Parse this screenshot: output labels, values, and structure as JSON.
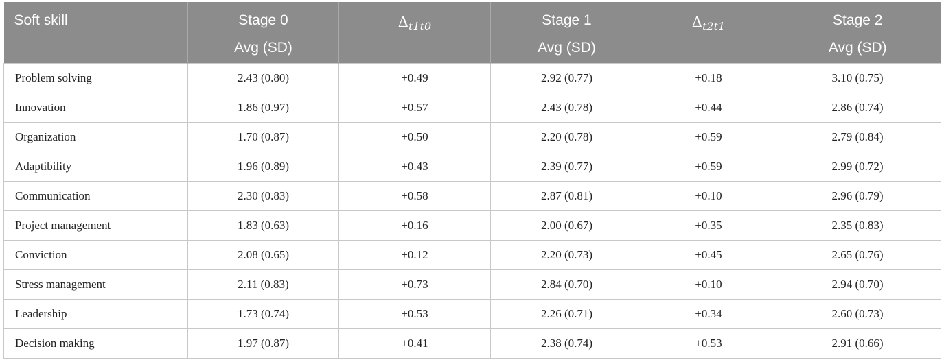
{
  "header": {
    "col0": "Soft skill",
    "col1_line1": "Stage 0",
    "col1_line2": "Avg (SD)",
    "col2_symbol": "Δ",
    "col2_sub": "t1t0",
    "col3_line1": "Stage 1",
    "col3_line2": "Avg (SD)",
    "col4_symbol": "Δ",
    "col4_sub": "t2t1",
    "col5_line1": "Stage 2",
    "col5_line2": "Avg (SD)"
  },
  "rows": [
    {
      "skill": "Problem solving",
      "stage0": "2.43 (0.80)",
      "d10": "+0.49",
      "stage1": "2.92 (0.77)",
      "d21": "+0.18",
      "stage2": "3.10 (0.75)"
    },
    {
      "skill": "Innovation",
      "stage0": "1.86 (0.97)",
      "d10": "+0.57",
      "stage1": "2.43 (0.78)",
      "d21": "+0.44",
      "stage2": "2.86 (0.74)"
    },
    {
      "skill": "Organization",
      "stage0": "1.70 (0.87)",
      "d10": "+0.50",
      "stage1": "2.20 (0.78)",
      "d21": "+0.59",
      "stage2": "2.79 (0.84)"
    },
    {
      "skill": "Adaptibility",
      "stage0": "1.96 (0.89)",
      "d10": "+0.43",
      "stage1": "2.39 (0.77)",
      "d21": "+0.59",
      "stage2": "2.99 (0.72)"
    },
    {
      "skill": "Communication",
      "stage0": "2.30 (0.83)",
      "d10": "+0.58",
      "stage1": "2.87 (0.81)",
      "d21": "+0.10",
      "stage2": "2.96 (0.79)"
    },
    {
      "skill": "Project management",
      "stage0": "1.83 (0.63)",
      "d10": "+0.16",
      "stage1": "2.00 (0.67)",
      "d21": "+0.35",
      "stage2": "2.35 (0.83)"
    },
    {
      "skill": "Conviction",
      "stage0": "2.08 (0.65)",
      "d10": "+0.12",
      "stage1": "2.20 (0.73)",
      "d21": "+0.45",
      "stage2": "2.65 (0.76)"
    },
    {
      "skill": "Stress management",
      "stage0": "2.11 (0.83)",
      "d10": "+0.73",
      "stage1": "2.84 (0.70)",
      "d21": "+0.10",
      "stage2": "2.94 (0.70)"
    },
    {
      "skill": "Leadership",
      "stage0": "1.73 (0.74)",
      "d10": "+0.53",
      "stage1": "2.26 (0.71)",
      "d21": "+0.34",
      "stage2": "2.60 (0.73)"
    },
    {
      "skill": "Decision making",
      "stage0": "1.97 (0.87)",
      "d10": "+0.41",
      "stage1": "2.38 (0.74)",
      "d21": "+0.53",
      "stage2": "2.91 (0.66)"
    }
  ]
}
